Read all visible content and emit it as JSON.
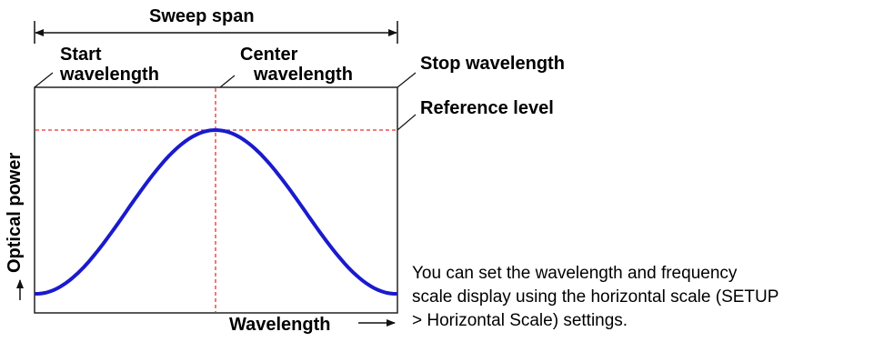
{
  "labels": {
    "sweep_span": "Sweep span",
    "start_wavelength": [
      "Start",
      "wavelength"
    ],
    "center_wavelength": [
      "Center",
      "wavelength"
    ],
    "stop_wavelength": "Stop wavelength",
    "reference_level": "Reference level",
    "y_axis": "Optical power",
    "x_axis": "Wavelength"
  },
  "note": [
    "You can set the wavelength and  frequency",
    "scale display using the horizontal scale (SETUP",
    "> Horizontal Scale) settings."
  ],
  "colors": {
    "curve": "#1a1acd",
    "reference_lines": "#e8322b",
    "frame": "#222222",
    "background": "#ffffff"
  }
}
